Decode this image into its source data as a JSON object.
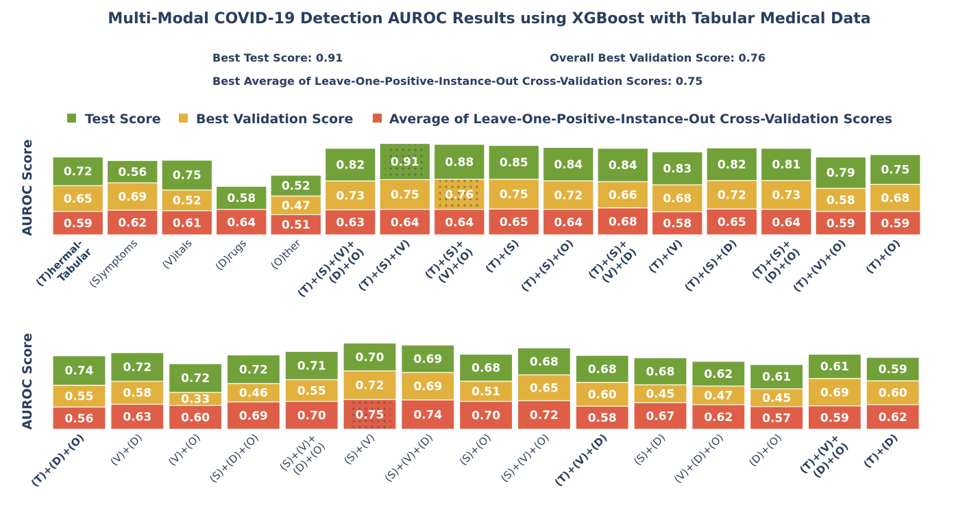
{
  "title": "Multi-Modal COVID-19 Detection AUROC Results using XGBoost with Tabular Medical Data",
  "summary": {
    "best_test": "Best Test Score: 0.91",
    "best_val": "Overall Best Validation Score: 0.76",
    "best_avg": "Best Average of Leave-One-Positive-Instance-Out Cross-Validation Scores: 0.75"
  },
  "legend": {
    "test": "Test Score",
    "val": "Best Validation Score",
    "avg": "Average of Leave-One-Positive-Instance-Out Cross-Validation Scores"
  },
  "colors": {
    "test": "#72a13a",
    "val": "#e2b13d",
    "avg": "#de5e48",
    "text": "#2a3f5f"
  },
  "chart_data": [
    {
      "type": "bar",
      "stacked": true,
      "ylabel": "AUROC Score",
      "categories": [
        "(T)hermal-\nTabular",
        "(S)ymptoms",
        "(V)itals",
        "(D)rugs",
        "(O)ther",
        "(T)+(S)+(V)+\n(D)+(O)",
        "(T)+(S)+(V)",
        "(T)+(S)+\n(V)+(O)",
        "(T)+(S)",
        "(T)+(S)+(O)",
        "(T)+(S)+\n(V)+(D)",
        "(T)+(V)",
        "(T)+(S)+(D)",
        "(T)+(S)+\n(D)+(O)",
        "(T)+(V)+(O)",
        "(T)+(O)"
      ],
      "bold_categories": [
        true,
        false,
        false,
        false,
        false,
        true,
        true,
        true,
        true,
        true,
        true,
        true,
        true,
        true,
        true,
        true
      ],
      "series": [
        {
          "name": "Average of Leave-One-Positive-Instance-Out Cross-Validation Scores",
          "values": [
            0.59,
            0.62,
            0.61,
            0.64,
            0.51,
            0.63,
            0.64,
            0.64,
            0.65,
            0.64,
            0.68,
            0.58,
            0.65,
            0.64,
            0.59,
            0.59
          ]
        },
        {
          "name": "Best Validation Score",
          "values": [
            0.65,
            0.69,
            0.52,
            null,
            0.47,
            0.73,
            0.75,
            0.76,
            0.75,
            0.72,
            0.66,
            0.68,
            0.72,
            0.73,
            0.58,
            0.68
          ]
        },
        {
          "name": "Test Score",
          "values": [
            0.72,
            0.56,
            0.75,
            0.58,
            0.52,
            0.82,
            0.91,
            0.88,
            0.85,
            0.84,
            0.84,
            0.83,
            0.82,
            0.81,
            0.79,
            0.75
          ]
        }
      ],
      "highlight": [
        {
          "series": "Test Score",
          "index": 6
        },
        {
          "series": "Best Validation Score",
          "index": 7
        }
      ]
    },
    {
      "type": "bar",
      "stacked": true,
      "ylabel": "AUROC Score",
      "categories": [
        "(T)+(D)+(O)",
        "(V)+(D)",
        "(V)+(O)",
        "(S)+(D)+(O)",
        "(S)+(V)+\n(D)+(O)",
        "(S)+(V)",
        "(S)+(V)+(D)",
        "(S)+(O)",
        "(S)+(V)+(O)",
        "(T)+(V)+(D)",
        "(S)+(D)",
        "(V)+(D)+(O)",
        "(D)+(O)",
        "(T)+(V)+\n(D)+(O)",
        "(T)+(D)"
      ],
      "bold_categories": [
        true,
        false,
        false,
        false,
        false,
        false,
        false,
        false,
        false,
        true,
        false,
        false,
        false,
        true,
        true
      ],
      "series": [
        {
          "name": "Average of Leave-One-Positive-Instance-Out Cross-Validation Scores",
          "values": [
            0.56,
            0.63,
            0.6,
            0.69,
            0.7,
            0.75,
            0.74,
            0.7,
            0.72,
            0.58,
            0.67,
            0.62,
            0.57,
            0.59,
            0.62
          ]
        },
        {
          "name": "Best Validation Score",
          "values": [
            0.55,
            0.58,
            0.33,
            0.46,
            0.55,
            0.72,
            0.69,
            0.51,
            0.65,
            0.6,
            0.45,
            0.47,
            0.45,
            0.69,
            0.6
          ]
        },
        {
          "name": "Test Score",
          "values": [
            0.74,
            0.72,
            0.72,
            0.72,
            0.71,
            0.7,
            0.69,
            0.68,
            0.68,
            0.68,
            0.68,
            0.62,
            0.61,
            0.61,
            0.59
          ]
        }
      ],
      "highlight": [
        {
          "series": "Average of Leave-One-Positive-Instance-Out Cross-Validation Scores",
          "index": 5
        }
      ]
    }
  ]
}
